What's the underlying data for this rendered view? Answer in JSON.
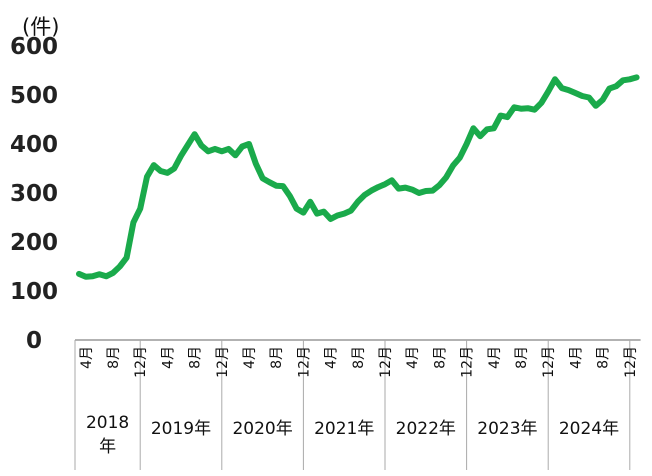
{
  "chart_data": {
    "type": "line",
    "unit_label": "(件)",
    "ylim": [
      0,
      600
    ],
    "yticks": [
      "0",
      "100",
      "200",
      "300",
      "400",
      "500",
      "600"
    ],
    "line_color": "#1aaa4b",
    "grid": false,
    "x_start": "2018-03",
    "series": [
      {
        "values": [
          135,
          129,
          130,
          134,
          130,
          137,
          150,
          168,
          240,
          268,
          333,
          357,
          345,
          341,
          350,
          376,
          398,
          420,
          397,
          385,
          390,
          385,
          390,
          377,
          395,
          400,
          360,
          330,
          322,
          315,
          314,
          294,
          268,
          260,
          282,
          258,
          262,
          247,
          254,
          258,
          264,
          282,
          296,
          305,
          312,
          318,
          326,
          309,
          311,
          307,
          300,
          304,
          305,
          316,
          332,
          356,
          372,
          400,
          432,
          416,
          430,
          432,
          458,
          455,
          475,
          472,
          473,
          470,
          484,
          507,
          532,
          514,
          510,
          504,
          498,
          495,
          478,
          490,
          513,
          518,
          530,
          532,
          536
        ]
      }
    ],
    "month_ticks": [
      "4月",
      "8月",
      "12月",
      "4月",
      "8月",
      "12月",
      "4月",
      "8月",
      "12月",
      "4月",
      "8月",
      "12月",
      "4月",
      "8月",
      "12月",
      "4月",
      "8月",
      "12月",
      "4月",
      "8月",
      "12月"
    ],
    "year_labels": [
      "2018年",
      "2019年",
      "2020年",
      "2021年",
      "2022年",
      "2023年",
      "2024年"
    ]
  }
}
